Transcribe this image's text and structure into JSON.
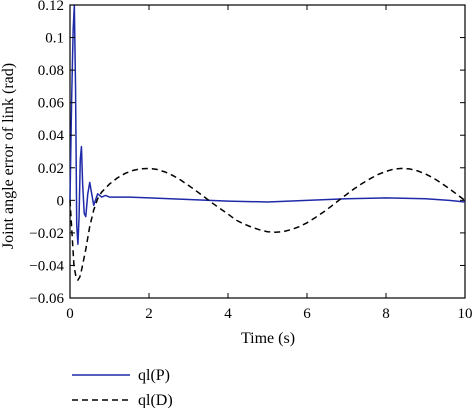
{
  "chart_data": {
    "type": "line",
    "title": "",
    "xlabel": "Time (s)",
    "ylabel": "Joint angle error of link (rad)",
    "xlim": [
      0,
      10
    ],
    "ylim": [
      -0.06,
      0.12
    ],
    "xticks": [
      0,
      2,
      4,
      6,
      8,
      10
    ],
    "yticks": [
      -0.06,
      -0.04,
      -0.02,
      0,
      0.02,
      0.04,
      0.06,
      0.08,
      0.1,
      0.12
    ],
    "xtick_labels": [
      "0",
      "2",
      "4",
      "6",
      "8",
      "10"
    ],
    "ytick_labels": [
      "−0.06",
      "−0.04",
      "−0.02",
      "0",
      "0.02",
      "0.04",
      "0.06",
      "0.08",
      "0.1",
      "0.12"
    ],
    "grid": false,
    "legend_position": "bottom-left, below the plot",
    "series": [
      {
        "name": "ql(P)",
        "color": "#1f2aa8",
        "style": "solid",
        "x": [
          0,
          0.04,
          0.08,
          0.11,
          0.14,
          0.17,
          0.2,
          0.23,
          0.26,
          0.29,
          0.32,
          0.36,
          0.4,
          0.45,
          0.5,
          0.55,
          0.6,
          0.7,
          0.8,
          0.9,
          1.0,
          1.5,
          2,
          3,
          4,
          5,
          6,
          7,
          8,
          9,
          9.6,
          10
        ],
        "y": [
          0,
          0.06,
          0.105,
          0.12,
          0.07,
          -0.015,
          -0.027,
          -0.01,
          0.025,
          0.033,
          0.01,
          -0.008,
          -0.01,
          0.004,
          0.011,
          0.004,
          -0.003,
          0.004,
          0.002,
          0.003,
          0.002,
          0.002,
          0.0015,
          0.0005,
          -0.0005,
          -0.001,
          0.0,
          0.001,
          0.0015,
          0.001,
          0.0,
          -0.001
        ]
      },
      {
        "name": "ql(D)",
        "color": "#000000",
        "style": "dashed",
        "x": [
          0,
          0.05,
          0.1,
          0.15,
          0.2,
          0.25,
          0.3,
          0.4,
          0.5,
          0.6,
          0.7,
          0.8,
          1.0,
          1.2,
          1.4,
          1.6,
          1.8,
          2.0,
          2.2,
          2.4,
          2.6,
          2.8,
          3.0,
          3.2,
          3.4,
          3.6,
          3.8,
          4.0,
          4.2,
          4.4,
          4.6,
          4.8,
          5.0,
          5.2,
          5.4,
          5.6,
          5.8,
          6.0,
          6.2,
          6.4,
          6.6,
          6.8,
          7.0,
          7.2,
          7.4,
          7.6,
          7.8,
          8.0,
          8.2,
          8.4,
          8.6,
          8.8,
          9.0,
          9.2,
          9.4,
          9.6,
          9.8,
          10.0
        ],
        "y": [
          0.0,
          -0.02,
          -0.04,
          -0.047,
          -0.049,
          -0.047,
          -0.042,
          -0.03,
          -0.016,
          -0.006,
          0.001,
          0.005,
          0.01,
          0.0138,
          0.0166,
          0.0184,
          0.0194,
          0.0196,
          0.019,
          0.0175,
          0.0153,
          0.0125,
          0.0092,
          0.0057,
          0.0021,
          -0.0016,
          -0.0051,
          -0.0084,
          -0.0121,
          -0.0145,
          -0.0165,
          -0.0181,
          -0.0193,
          -0.0196,
          -0.0192,
          -0.018,
          -0.0162,
          -0.0138,
          -0.0108,
          -0.0075,
          -0.0039,
          -0.0001,
          0.0036,
          0.0072,
          0.0104,
          0.0133,
          0.0159,
          0.0178,
          0.0192,
          0.0196,
          0.0193,
          0.0181,
          0.0162,
          0.0137,
          0.0106,
          0.0072,
          0.0036,
          -0.0001
        ]
      }
    ]
  }
}
